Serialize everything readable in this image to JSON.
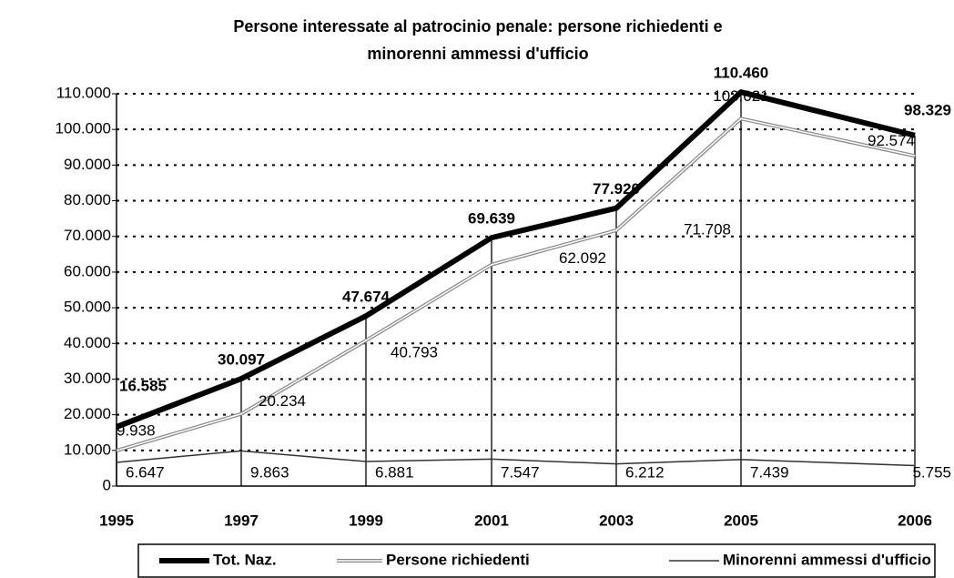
{
  "chart_data": {
    "type": "line",
    "title": [
      "Persone interessate al patrocinio penale: persone richiedenti e",
      "minorenni ammessi d'ufficio"
    ],
    "categories": [
      "1995",
      "1997",
      "1999",
      "2001",
      "2003",
      "2005",
      "2006"
    ],
    "ylim": [
      0,
      110000
    ],
    "yticks": [
      0,
      {
        "value": 10000,
        "label": "10.000"
      },
      {
        "value": 20000,
        "label": "20.000"
      },
      {
        "value": 30000,
        "label": "30.000"
      },
      {
        "value": 40000,
        "label": "40.000"
      },
      {
        "value": 50000,
        "label": "50.000"
      },
      {
        "value": 60000,
        "label": "60.000"
      },
      {
        "value": 70000,
        "label": "70.000"
      },
      {
        "value": 80000,
        "label": "80.000"
      },
      {
        "value": 90000,
        "label": "90.000"
      },
      {
        "value": 100000,
        "label": "100.000"
      },
      {
        "value": 110000,
        "label": "110.000"
      }
    ],
    "grid": true,
    "legend": "bottom",
    "series": [
      {
        "name": "Tot. Naz.",
        "color": "#000000",
        "values": [
          16585,
          30097,
          47674,
          69639,
          77920,
          110460,
          98329
        ],
        "value_labels": [
          "16.585",
          "30.097",
          "47.674",
          "69.639",
          "77.920",
          "110.460",
          "98.329"
        ]
      },
      {
        "name": "Persone richiedenti",
        "color": "#888888",
        "values": [
          9938,
          20234,
          40793,
          62092,
          71708,
          103021,
          92574
        ],
        "value_labels": [
          "9.938",
          "20.234",
          "40.793",
          "62.092",
          "71.708",
          "103.021",
          "92.574"
        ]
      },
      {
        "name": "Minorenni ammessi d'ufficio",
        "color": "#333333",
        "values": [
          6647,
          9863,
          6881,
          7547,
          6212,
          7439,
          5755
        ],
        "value_labels": [
          "6.647",
          "9.863",
          "6.881",
          "7.547",
          "6.212",
          "7.439",
          "5.755"
        ]
      }
    ]
  }
}
